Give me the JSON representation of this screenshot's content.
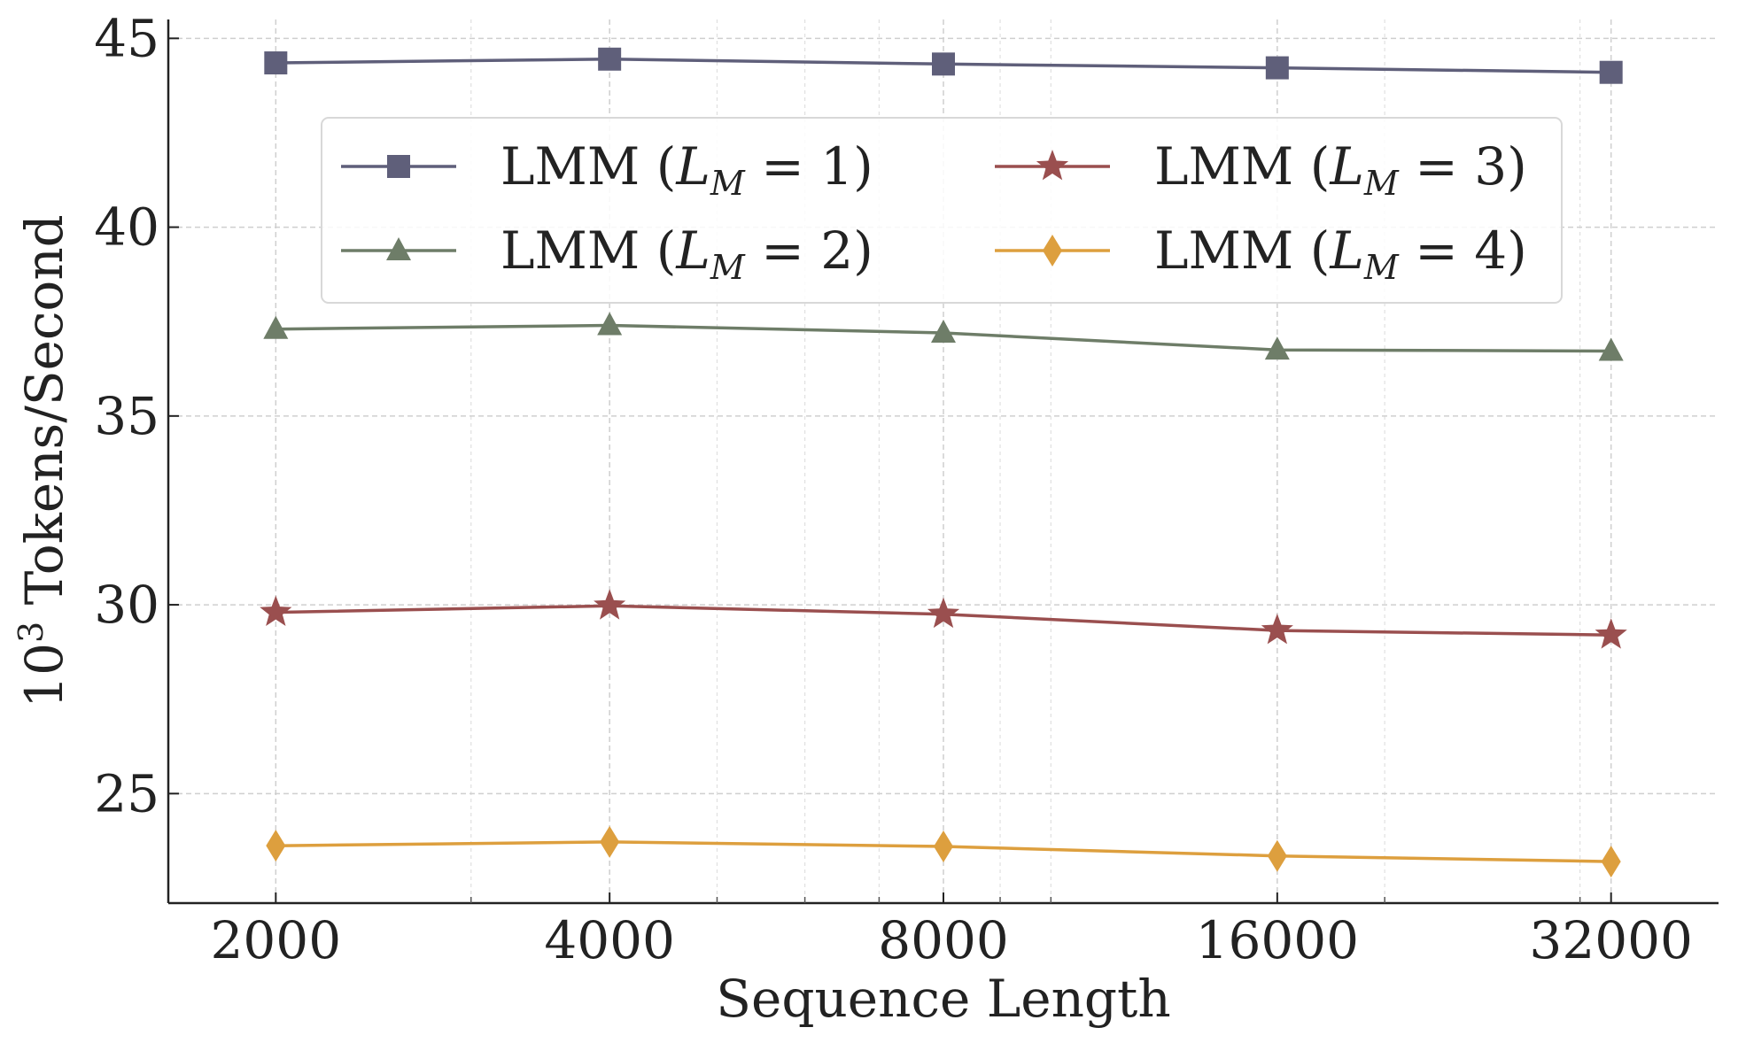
{
  "chart_data": {
    "type": "line",
    "title": "",
    "xlabel": "Sequence Length",
    "ylabel_base": "10",
    "ylabel_sup": "3",
    "ylabel_rest": " Tokens/Second",
    "x_scale": "log2",
    "x": [
      2000,
      4000,
      8000,
      16000,
      32000
    ],
    "x_tick_labels": [
      "2000",
      "4000",
      "8000",
      "16000",
      "32000"
    ],
    "xlim": [
      1600,
      40000
    ],
    "ylim": [
      22.1,
      45.5
    ],
    "y_ticks": [
      25,
      30,
      35,
      40,
      45
    ],
    "y_tick_labels": [
      "25",
      "30",
      "35",
      "40",
      "45"
    ],
    "grid": true,
    "legend_position": "upper-center",
    "series": [
      {
        "name": "LMM (L_M = 1)",
        "legend_prefix": "LMM (",
        "legend_L": "L",
        "legend_sub": "M",
        "legend_suffix": " = 1)",
        "marker": "square",
        "color": "#5f5f7a",
        "values": [
          44.35,
          44.45,
          44.32,
          44.22,
          44.1
        ]
      },
      {
        "name": "LMM (L_M = 2)",
        "legend_prefix": "LMM (",
        "legend_L": "L",
        "legend_sub": "M",
        "legend_suffix": " = 2)",
        "marker": "triangle",
        "color": "#6e7d68",
        "values": [
          37.3,
          37.4,
          37.2,
          36.75,
          36.72
        ]
      },
      {
        "name": "LMM (L_M = 3)",
        "legend_prefix": "LMM (",
        "legend_L": "L",
        "legend_sub": "M",
        "legend_suffix": " = 3)",
        "marker": "star",
        "color": "#9a4f4f",
        "values": [
          29.8,
          29.97,
          29.75,
          29.32,
          29.2
        ]
      },
      {
        "name": "LMM (L_M = 4)",
        "legend_prefix": "LMM (",
        "legend_L": "L",
        "legend_sub": "M",
        "legend_suffix": " = 4)",
        "marker": "diamond",
        "color": "#dd9f3e",
        "values": [
          23.62,
          23.72,
          23.6,
          23.35,
          23.2
        ]
      }
    ]
  }
}
